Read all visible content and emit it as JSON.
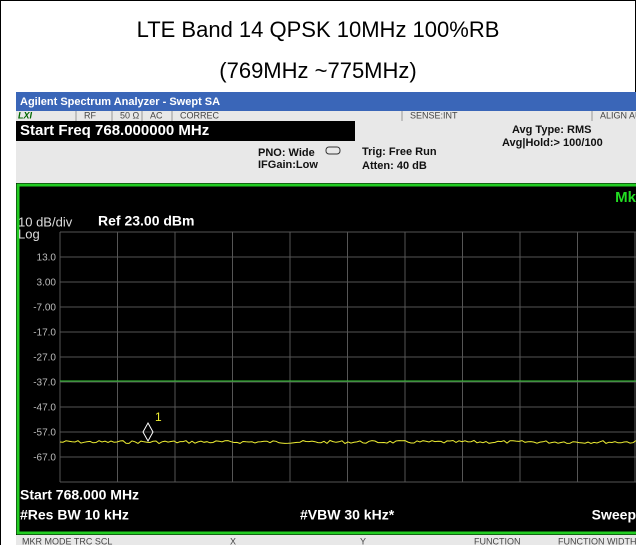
{
  "caption": {
    "line1": "LTE Band 14 QPSK 10MHz 100%RB",
    "line2": "(769MHz ~775MHz)"
  },
  "window": {
    "title": "Agilent Spectrum Analyzer - Swept SA"
  },
  "status": {
    "logo": "LXI",
    "items": [
      "RF",
      "50 Ω",
      "AC",
      "CORREC",
      "SENSE:INT",
      "ALIGN AUTO"
    ]
  },
  "header": {
    "start_freq": "Start Freq 768.000000 MHz",
    "pno": "PNO: Wide",
    "ifgain": "IFGain:Low",
    "trig": "Trig: Free Run",
    "atten": "Atten: 40 dB",
    "avg_type": "Avg Type: RMS",
    "avg_hold": "Avg|Hold:> 100/100"
  },
  "display": {
    "mk": "Mk",
    "scale": "10 dB/div",
    "ref": "Ref 23.00 dBm",
    "log": "Log",
    "y_labels": [
      "13.0",
      "3.00",
      "-7.00",
      "-17.0",
      "-27.0",
      "-37.0",
      "-47.0",
      "-57.0",
      "-67.0"
    ],
    "marker": "1"
  },
  "footer": {
    "start": "Start 768.000 MHz",
    "rbw": "#Res BW 10 kHz",
    "vbw": "#VBW 30 kHz*",
    "sweep": "Sweep"
  },
  "table_header": [
    "MKR MODE TRC SCL",
    "X",
    "Y",
    "FUNCTION",
    "FUNCTION WIDTH"
  ]
}
